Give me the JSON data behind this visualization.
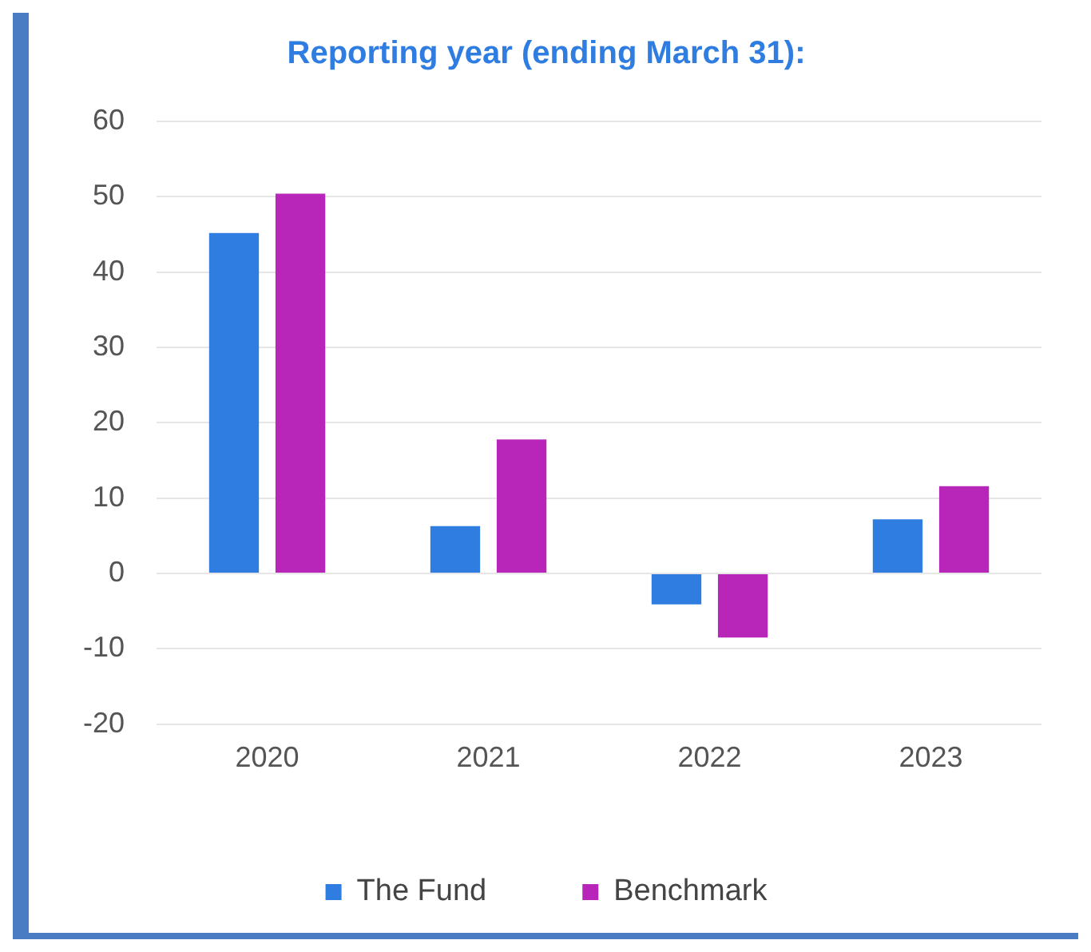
{
  "chart_data": {
    "type": "bar",
    "title": "Reporting year (ending March 31):",
    "categories": [
      "2020",
      "2021",
      "2022",
      "2023"
    ],
    "series": [
      {
        "name": "The Fund",
        "color": "#2f7de1",
        "values": [
          45.2,
          6.3,
          -4.1,
          7.2
        ]
      },
      {
        "name": "Benchmark",
        "color": "#b726b8",
        "values": [
          50.4,
          17.8,
          -8.5,
          11.6
        ]
      }
    ],
    "ylim": [
      -20,
      60
    ],
    "yticks": [
      -20,
      -10,
      0,
      10,
      20,
      30,
      40,
      50,
      60
    ],
    "grid": "y",
    "legend": "bottom"
  }
}
